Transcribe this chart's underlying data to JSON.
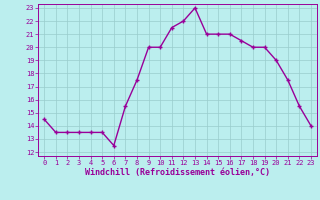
{
  "x": [
    0,
    1,
    2,
    3,
    4,
    5,
    6,
    7,
    8,
    9,
    10,
    11,
    12,
    13,
    14,
    15,
    16,
    17,
    18,
    19,
    20,
    21,
    22,
    23
  ],
  "y": [
    14.5,
    13.5,
    13.5,
    13.5,
    13.5,
    13.5,
    12.5,
    15.5,
    17.5,
    20.0,
    20.0,
    21.5,
    22.0,
    23.0,
    21.0,
    21.0,
    21.0,
    20.5,
    20.0,
    20.0,
    19.0,
    17.5,
    15.5,
    14.0
  ],
  "line_color": "#990099",
  "marker": "+",
  "marker_size": 3,
  "marker_color": "#990099",
  "line_width": 1.0,
  "background_color": "#bbeeee",
  "grid_color": "#99cccc",
  "xlabel": "Windchill (Refroidissement éolien,°C)",
  "xlabel_color": "#990099",
  "tick_color": "#990099",
  "ylim": [
    12,
    23
  ],
  "xlim": [
    -0.5,
    23.5
  ],
  "yticks": [
    12,
    13,
    14,
    15,
    16,
    17,
    18,
    19,
    20,
    21,
    22,
    23
  ],
  "xticks": [
    0,
    1,
    2,
    3,
    4,
    5,
    6,
    7,
    8,
    9,
    10,
    11,
    12,
    13,
    14,
    15,
    16,
    17,
    18,
    19,
    20,
    21,
    22,
    23
  ]
}
